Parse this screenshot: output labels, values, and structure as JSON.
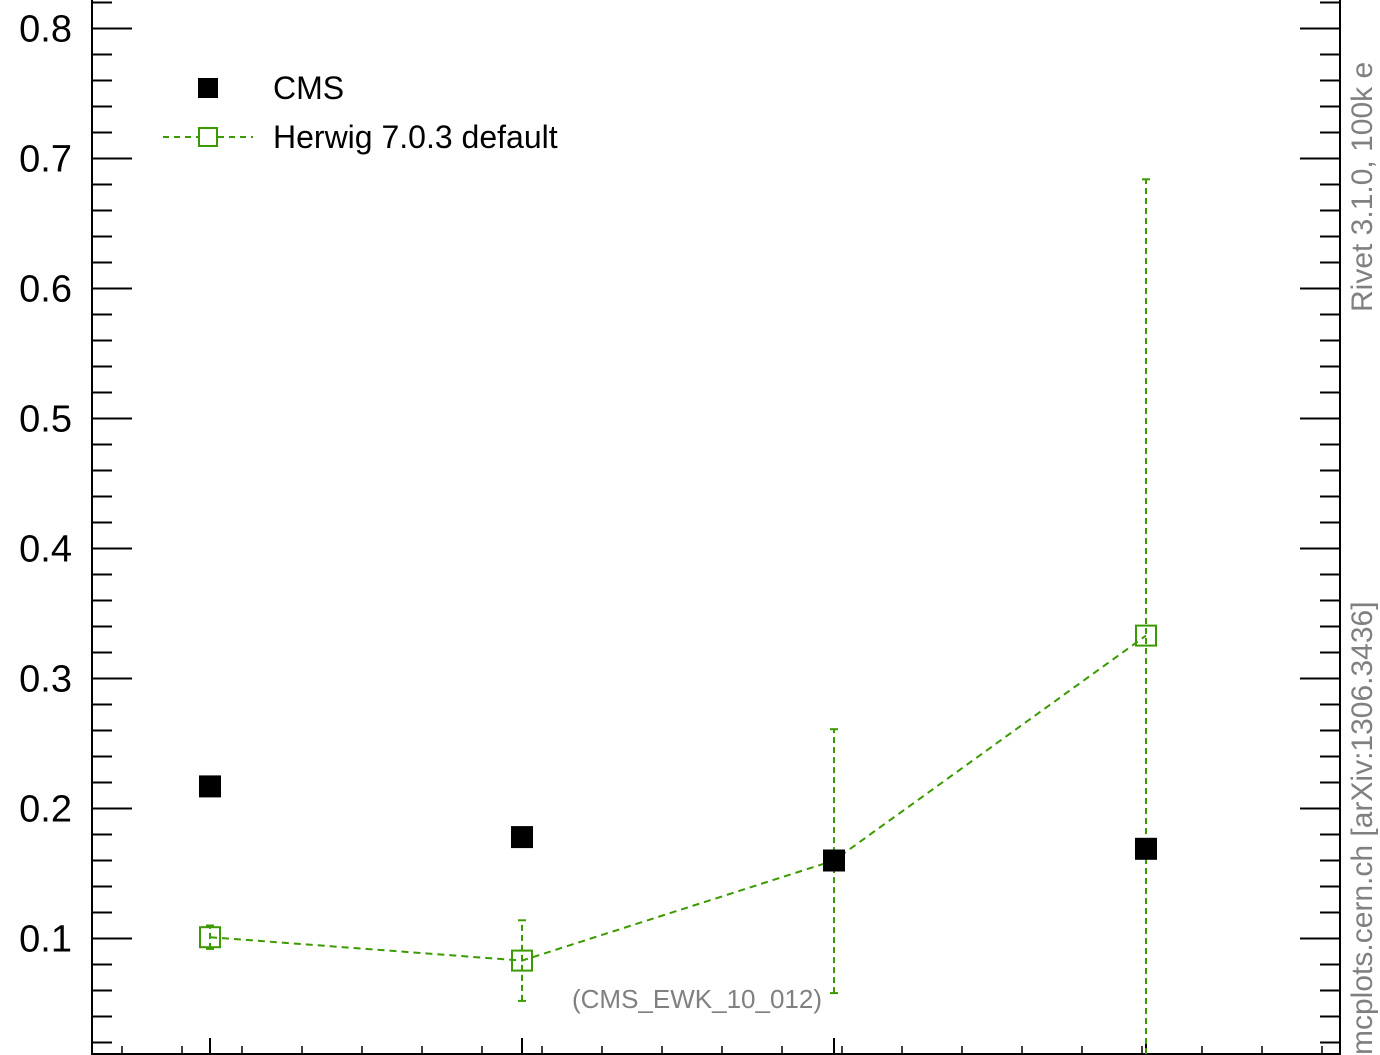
{
  "chart_data": {
    "type": "scatter",
    "title": "",
    "xlabel": "",
    "ylabel": "",
    "ylim": [
      0.0,
      0.82
    ],
    "y_ticks": [
      {
        "value": 0.1,
        "label": "0.1"
      },
      {
        "value": 0.2,
        "label": "0.2"
      },
      {
        "value": 0.3,
        "label": "0.3"
      },
      {
        "value": 0.4,
        "label": "0.4"
      },
      {
        "value": 0.5,
        "label": "0.5"
      },
      {
        "value": 0.6,
        "label": "0.6"
      },
      {
        "value": 0.7,
        "label": "0.7"
      },
      {
        "value": 0.8,
        "label": "0.8"
      }
    ],
    "y_minor_step": 0.02,
    "x_bins": 4,
    "series": [
      {
        "name": "CMS",
        "marker": "filled-square",
        "line": "none",
        "color": "#000000",
        "points": [
          {
            "bin": 1,
            "y": 0.217
          },
          {
            "bin": 2,
            "y": 0.178
          },
          {
            "bin": 3,
            "y": 0.16
          },
          {
            "bin": 4,
            "y": 0.169
          }
        ]
      },
      {
        "name": "Herwig 7.0.3 default",
        "marker": "open-square",
        "line": "dashed",
        "color": "#3a9a00",
        "points": [
          {
            "bin": 1,
            "y": 0.101,
            "ylo": 0.092,
            "yhi": 0.11
          },
          {
            "bin": 2,
            "y": 0.083,
            "ylo": 0.052,
            "yhi": 0.114
          },
          {
            "bin": 3,
            "y": 0.16,
            "ylo": 0.058,
            "yhi": 0.261
          },
          {
            "bin": 4,
            "y": 0.333,
            "ylo": 0.0,
            "yhi": 0.684
          }
        ]
      }
    ],
    "legend": {
      "placement": "top-left"
    },
    "annotations": {
      "analysis_id": "(CMS_EWK_10_012)",
      "right_top": "Rivet 3.1.0,  100k e",
      "right_bottom": "mcplots.cern.ch [arXiv:1306.3436]"
    }
  }
}
